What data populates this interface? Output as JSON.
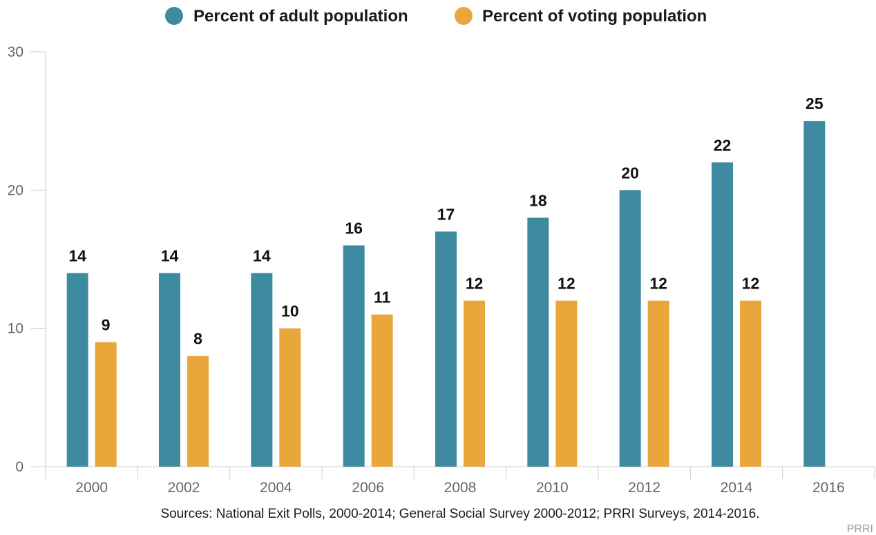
{
  "chart_data": {
    "type": "bar",
    "categories": [
      "2000",
      "2002",
      "2004",
      "2006",
      "2008",
      "2010",
      "2012",
      "2014",
      "2016"
    ],
    "series": [
      {
        "name": "Percent of adult population",
        "color": "#3e8aa0",
        "values": [
          14,
          14,
          14,
          16,
          17,
          18,
          20,
          22,
          25
        ]
      },
      {
        "name": "Percent of voting population",
        "color": "#e8a63b",
        "values": [
          9,
          8,
          10,
          11,
          12,
          12,
          12,
          12,
          null
        ]
      }
    ],
    "ylim": [
      0,
      30
    ],
    "yticks": [
      0,
      10,
      20,
      30
    ],
    "legend_position": "top-center",
    "grid": false
  },
  "source_note": "Sources: National Exit Polls, 2000-2014; General Social Survey 2000-2012; PRRI Surveys, 2014-2016.",
  "credit": "PRRI"
}
